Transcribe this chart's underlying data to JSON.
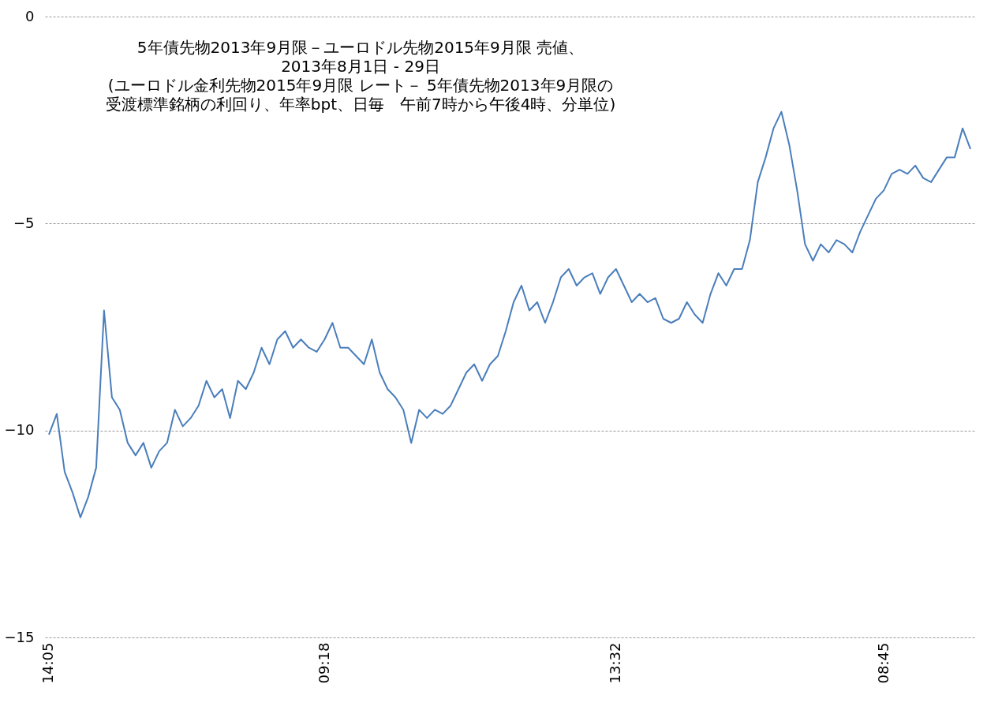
{
  "chart_data": {
    "type": "line",
    "title": "5年債先物2013年9月限－ユーロドル先物2015年9月限 売値、\n2013年8月1日 - 29日",
    "subtitle": "(ユーロドル金利先物2015年9月限 レート－ 5年債先物2013年9月限の受渡標準銘柄の利回り、年率bpt、日毎　午前7時から午後4時、分単位)",
    "categories": [
      "14:05",
      null,
      null,
      null,
      null,
      null,
      null,
      null,
      null,
      null,
      null,
      null,
      null,
      null,
      null,
      null,
      null,
      null,
      null,
      null,
      null,
      null,
      null,
      null,
      null,
      null,
      null,
      null,
      null,
      null,
      null,
      null,
      null,
      null,
      null,
      "09:18",
      null,
      null,
      null,
      null,
      null,
      null,
      null,
      null,
      null,
      null,
      null,
      null,
      null,
      null,
      null,
      null,
      null,
      null,
      null,
      null,
      null,
      null,
      null,
      null,
      null,
      null,
      null,
      null,
      null,
      null,
      null,
      null,
      null,
      null,
      null,
      null,
      "13:32",
      null,
      null,
      null,
      null,
      null,
      null,
      null,
      null,
      null,
      null,
      null,
      null,
      null,
      null,
      null,
      null,
      null,
      null,
      null,
      null,
      null,
      null,
      null,
      null,
      null,
      null,
      null,
      null,
      null,
      null,
      null,
      null,
      null,
      "08:45",
      null,
      null,
      null,
      null,
      null,
      null,
      null,
      null,
      null,
      null,
      null
    ],
    "series": [
      {
        "color": "#4a7ebb",
        "values": [
          -10.1,
          -9.6,
          -11.0,
          -11.5,
          -12.1,
          -11.6,
          -10.9,
          -7.1,
          -9.2,
          -9.5,
          -10.3,
          -10.6,
          -10.3,
          -10.9,
          -10.5,
          -10.3,
          -9.5,
          -9.9,
          -9.7,
          -9.4,
          -8.8,
          -9.2,
          -9.0,
          -9.7,
          -8.8,
          -9.0,
          -8.6,
          -8.0,
          -8.4,
          -7.8,
          -7.6,
          -8.0,
          -7.8,
          -8.0,
          -8.1,
          -7.8,
          -7.4,
          -8.0,
          -8.0,
          -8.2,
          -8.4,
          -7.8,
          -8.6,
          -9.0,
          -9.2,
          -9.5,
          -10.3,
          -9.5,
          -9.7,
          -9.5,
          -9.6,
          -9.4,
          -9.0,
          -8.6,
          -8.4,
          -8.8,
          -8.4,
          -8.2,
          -7.6,
          -6.9,
          -6.5,
          -7.1,
          -6.9,
          -7.4,
          -6.9,
          -6.3,
          -6.1,
          -6.5,
          -6.3,
          -6.2,
          -6.7,
          -6.3,
          -6.1,
          -6.5,
          -6.9,
          -6.7,
          -6.9,
          -6.8,
          -7.3,
          -7.4,
          -7.3,
          -6.9,
          -7.2,
          -7.4,
          -6.7,
          -6.2,
          -6.5,
          -6.1,
          -6.1,
          -5.4,
          -4.0,
          -3.4,
          -2.7,
          -2.3,
          -3.1,
          -4.2,
          -5.5,
          -5.9,
          -5.5,
          -5.7,
          -5.4,
          -5.5,
          -5.7,
          -5.2,
          -4.8,
          -4.4,
          -4.2,
          -3.8,
          -3.7,
          -3.8,
          -3.6,
          -3.9,
          -4.0,
          -3.7,
          -3.4,
          -3.4,
          -2.7,
          -3.2
        ]
      }
    ],
    "ylim": [
      -15,
      0
    ],
    "yticks": [
      -15,
      -10,
      -5,
      0
    ],
    "grid": "y",
    "marker": "none",
    "line_style": "solid"
  }
}
